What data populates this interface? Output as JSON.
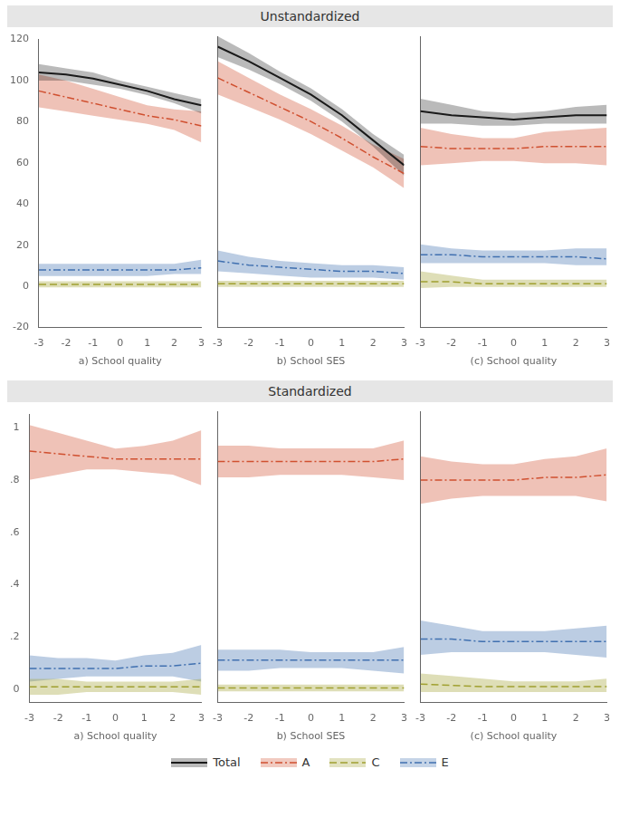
{
  "chart_data": [
    {
      "type": "line",
      "title": "Unstandardized",
      "xlabel": "a) School quality",
      "legend": "bottom",
      "grid": false,
      "x": [
        -3,
        -2,
        -1,
        0,
        1,
        2,
        3
      ],
      "xlim": [
        -3,
        3
      ],
      "xticks": [
        -3,
        -2,
        -1,
        0,
        1,
        2,
        3
      ],
      "ylim": [
        -20,
        120
      ],
      "yticks": [
        -20,
        0,
        20,
        40,
        60,
        80,
        100,
        120
      ],
      "series": [
        {
          "name": "Total",
          "color": "#1a1a1a",
          "line_style": "solid",
          "values": [
            104,
            103,
            101,
            98,
            95,
            91,
            88
          ],
          "lower": [
            100,
            100,
            98,
            96,
            93,
            89,
            84
          ],
          "upper": [
            108,
            106,
            104,
            100,
            97,
            94,
            91
          ]
        },
        {
          "name": "A",
          "color": "#d05030",
          "line_style": "dashdot",
          "values": [
            95,
            92,
            89,
            86,
            83,
            81,
            78
          ],
          "lower": [
            87,
            85,
            83,
            81,
            79,
            76,
            70
          ],
          "upper": [
            103,
            100,
            96,
            92,
            88,
            86,
            85
          ]
        },
        {
          "name": "C",
          "color": "#a0a030",
          "line_style": "dashed",
          "values": [
            1,
            1,
            1,
            1,
            1,
            1,
            1
          ],
          "lower": [
            -0.5,
            -0.5,
            -0.5,
            -0.5,
            -0.5,
            -0.5,
            -0.5
          ],
          "upper": [
            2.5,
            2.5,
            2.5,
            2.5,
            2.5,
            2.5,
            2.5
          ]
        },
        {
          "name": "E",
          "color": "#4070b0",
          "line_style": "dashdot",
          "values": [
            8,
            8,
            8,
            8,
            8,
            8,
            9
          ],
          "lower": [
            5,
            5,
            5,
            5,
            5,
            6,
            6
          ],
          "upper": [
            11,
            11,
            11,
            11,
            11,
            11,
            13
          ]
        }
      ]
    },
    {
      "type": "line",
      "xlabel": "b) School SES",
      "grid": false,
      "tick_labels": "x",
      "x": [
        -3,
        -2,
        -1,
        0,
        1,
        2,
        3
      ],
      "xlim": [
        -3,
        3
      ],
      "xticks": [
        -3,
        -2,
        -1,
        0,
        1,
        2,
        3
      ],
      "ylim": [
        -20,
        120
      ],
      "yticks": [
        -20,
        0,
        20,
        40,
        60,
        80,
        100,
        120
      ],
      "series": [
        {
          "name": "Total",
          "color": "#1a1a1a",
          "line_style": "solid",
          "values": [
            115,
            108,
            100,
            92,
            82,
            70,
            58
          ],
          "lower": [
            110,
            104,
            97,
            89,
            79,
            67,
            53
          ],
          "upper": [
            120,
            112,
            103,
            95,
            85,
            73,
            63
          ]
        },
        {
          "name": "A",
          "color": "#d05030",
          "line_style": "dashdot",
          "values": [
            100,
            93,
            86,
            79,
            71,
            62,
            54
          ],
          "lower": [
            92,
            86,
            80,
            73,
            65,
            57,
            47
          ],
          "upper": [
            108,
            100,
            92,
            85,
            77,
            68,
            61
          ]
        },
        {
          "name": "C",
          "color": "#a0a030",
          "line_style": "dashed",
          "values": [
            1,
            1,
            1,
            1,
            1,
            1,
            1
          ],
          "lower": [
            -0.5,
            -0.5,
            -0.5,
            -0.5,
            -0.5,
            -0.5,
            -0.5
          ],
          "upper": [
            2.5,
            2.5,
            2.5,
            2.5,
            2.5,
            2.5,
            2.5
          ]
        },
        {
          "name": "E",
          "color": "#4070b0",
          "line_style": "dashdot",
          "values": [
            12,
            10,
            9,
            8,
            7,
            7,
            6
          ],
          "lower": [
            7,
            6,
            5,
            4,
            4,
            4,
            3
          ],
          "upper": [
            17,
            14,
            12,
            11,
            10,
            10,
            9
          ]
        }
      ]
    },
    {
      "type": "line",
      "xlabel": "(c) School quality",
      "grid": false,
      "tick_labels": "x",
      "x": [
        -3,
        -2,
        -1,
        0,
        1,
        2,
        3
      ],
      "xlim": [
        -3,
        3
      ],
      "xticks": [
        -3,
        -2,
        -1,
        0,
        1,
        2,
        3
      ],
      "ylim": [
        -20,
        120
      ],
      "yticks": [
        -20,
        0,
        20,
        40,
        60,
        80,
        100,
        120
      ],
      "series": [
        {
          "name": "Total",
          "color": "#1a1a1a",
          "line_style": "solid",
          "values": [
            84,
            82,
            81,
            80,
            81,
            82,
            82
          ],
          "lower": [
            78,
            78,
            77,
            77,
            78,
            78,
            78
          ],
          "upper": [
            90,
            87,
            84,
            83,
            84,
            86,
            87
          ]
        },
        {
          "name": "A",
          "color": "#d05030",
          "line_style": "dashdot",
          "values": [
            67,
            66,
            66,
            66,
            67,
            67,
            67
          ],
          "lower": [
            58,
            59,
            60,
            60,
            59,
            59,
            58
          ],
          "upper": [
            76,
            73,
            71,
            71,
            74,
            75,
            76
          ]
        },
        {
          "name": "C",
          "color": "#a0a030",
          "line_style": "dashed",
          "values": [
            2,
            2,
            1,
            1,
            1,
            1,
            1
          ],
          "lower": [
            -1,
            -0.5,
            -0.5,
            -0.5,
            -0.5,
            -0.5,
            -0.5
          ],
          "upper": [
            7,
            5,
            3,
            3,
            3,
            3,
            3
          ]
        },
        {
          "name": "E",
          "color": "#4070b0",
          "line_style": "dashdot",
          "values": [
            15,
            15,
            14,
            14,
            14,
            14,
            13
          ],
          "lower": [
            11,
            11,
            11,
            11,
            11,
            10,
            10
          ],
          "upper": [
            20,
            18,
            17,
            17,
            17,
            18,
            18
          ]
        }
      ]
    },
    {
      "type": "line",
      "title": "Standardized",
      "xlabel": "a) School quality",
      "grid": false,
      "x": [
        -3,
        -2,
        -1,
        0,
        1,
        2,
        3
      ],
      "xlim": [
        -3,
        3
      ],
      "xticks": [
        -3,
        -2,
        -1,
        0,
        1,
        2,
        3
      ],
      "ylim": [
        -0.05,
        1.05
      ],
      "yticks": [
        0,
        {
          "value": 0.2,
          "label": ".2"
        },
        {
          "value": 0.4,
          "label": ".4"
        },
        {
          "value": 0.6,
          "label": ".6"
        },
        {
          "value": 0.8,
          "label": ".8"
        },
        1
      ],
      "series": [
        {
          "name": "A",
          "color": "#d05030",
          "line_style": "dashdot",
          "values": [
            0.91,
            0.9,
            0.89,
            0.88,
            0.88,
            0.88,
            0.88
          ],
          "lower": [
            0.8,
            0.82,
            0.84,
            0.84,
            0.83,
            0.82,
            0.78
          ],
          "upper": [
            1.01,
            0.98,
            0.95,
            0.92,
            0.93,
            0.95,
            0.99
          ]
        },
        {
          "name": "C",
          "color": "#a0a030",
          "line_style": "dashed",
          "values": [
            0.01,
            0.01,
            0.01,
            0.01,
            0.01,
            0.01,
            0.01
          ],
          "lower": [
            -0.02,
            -0.02,
            -0.01,
            -0.01,
            -0.01,
            -0.01,
            -0.02
          ],
          "upper": [
            0.04,
            0.04,
            0.03,
            0.03,
            0.03,
            0.03,
            0.04
          ]
        },
        {
          "name": "E",
          "color": "#4070b0",
          "line_style": "dashdot",
          "values": [
            0.08,
            0.08,
            0.08,
            0.08,
            0.09,
            0.09,
            0.1
          ],
          "lower": [
            0.03,
            0.04,
            0.05,
            0.05,
            0.05,
            0.05,
            0.03
          ],
          "upper": [
            0.13,
            0.12,
            0.12,
            0.11,
            0.13,
            0.14,
            0.17
          ]
        }
      ]
    },
    {
      "type": "line",
      "xlabel": "b) School SES",
      "grid": false,
      "tick_labels": "x",
      "x": [
        -3,
        -2,
        -1,
        0,
        1,
        2,
        3
      ],
      "xlim": [
        -3,
        3
      ],
      "xticks": [
        -3,
        -2,
        -1,
        0,
        1,
        2,
        3
      ],
      "ylim": [
        -0.05,
        1.05
      ],
      "yticks": [
        0,
        {
          "value": 0.2,
          "label": ".2"
        },
        {
          "value": 0.4,
          "label": ".4"
        },
        {
          "value": 0.6,
          "label": ".6"
        },
        {
          "value": 0.8,
          "label": ".8"
        },
        1
      ],
      "series": [
        {
          "name": "A",
          "color": "#d05030",
          "line_style": "dashdot",
          "values": [
            0.86,
            0.86,
            0.86,
            0.86,
            0.86,
            0.86,
            0.87
          ],
          "lower": [
            0.8,
            0.8,
            0.81,
            0.81,
            0.81,
            0.8,
            0.79
          ],
          "upper": [
            0.92,
            0.92,
            0.91,
            0.91,
            0.91,
            0.91,
            0.94
          ]
        },
        {
          "name": "C",
          "color": "#a0a030",
          "line_style": "dashed",
          "values": [
            0.005,
            0.005,
            0.005,
            0.005,
            0.005,
            0.005,
            0.005
          ],
          "lower": [
            -0.008,
            -0.008,
            -0.008,
            -0.008,
            -0.008,
            -0.008,
            -0.008
          ],
          "upper": [
            0.018,
            0.018,
            0.018,
            0.018,
            0.018,
            0.018,
            0.018
          ]
        },
        {
          "name": "E",
          "color": "#4070b0",
          "line_style": "dashdot",
          "values": [
            0.11,
            0.11,
            0.11,
            0.11,
            0.11,
            0.11,
            0.11
          ],
          "lower": [
            0.07,
            0.07,
            0.08,
            0.08,
            0.08,
            0.07,
            0.06
          ],
          "upper": [
            0.15,
            0.15,
            0.15,
            0.14,
            0.14,
            0.14,
            0.16
          ]
        }
      ]
    },
    {
      "type": "line",
      "xlabel": "(c) School quality",
      "grid": false,
      "tick_labels": "x",
      "x": [
        -3,
        -2,
        -1,
        0,
        1,
        2,
        3
      ],
      "xlim": [
        -3,
        3
      ],
      "xticks": [
        -3,
        -2,
        -1,
        0,
        1,
        2,
        3
      ],
      "ylim": [
        -0.05,
        1.05
      ],
      "yticks": [
        0,
        {
          "value": 0.2,
          "label": ".2"
        },
        {
          "value": 0.4,
          "label": ".4"
        },
        {
          "value": 0.6,
          "label": ".6"
        },
        {
          "value": 0.8,
          "label": ".8"
        },
        1
      ],
      "series": [
        {
          "name": "A",
          "color": "#d05030",
          "line_style": "dashdot",
          "values": [
            0.79,
            0.79,
            0.79,
            0.79,
            0.8,
            0.8,
            0.81
          ],
          "lower": [
            0.7,
            0.72,
            0.73,
            0.73,
            0.73,
            0.73,
            0.71
          ],
          "upper": [
            0.88,
            0.86,
            0.85,
            0.85,
            0.87,
            0.88,
            0.91
          ]
        },
        {
          "name": "C",
          "color": "#a0a030",
          "line_style": "dashed",
          "values": [
            0.02,
            0.015,
            0.01,
            0.01,
            0.01,
            0.01,
            0.01
          ],
          "lower": [
            -0.01,
            -0.01,
            -0.01,
            -0.01,
            -0.01,
            -0.01,
            -0.01
          ],
          "upper": [
            0.06,
            0.05,
            0.04,
            0.03,
            0.03,
            0.03,
            0.04
          ]
        },
        {
          "name": "E",
          "color": "#4070b0",
          "line_style": "dashdot",
          "values": [
            0.19,
            0.19,
            0.18,
            0.18,
            0.18,
            0.18,
            0.18
          ],
          "lower": [
            0.13,
            0.14,
            0.14,
            0.14,
            0.14,
            0.13,
            0.12
          ],
          "upper": [
            0.26,
            0.24,
            0.22,
            0.22,
            0.22,
            0.23,
            0.24
          ]
        }
      ]
    }
  ]
}
